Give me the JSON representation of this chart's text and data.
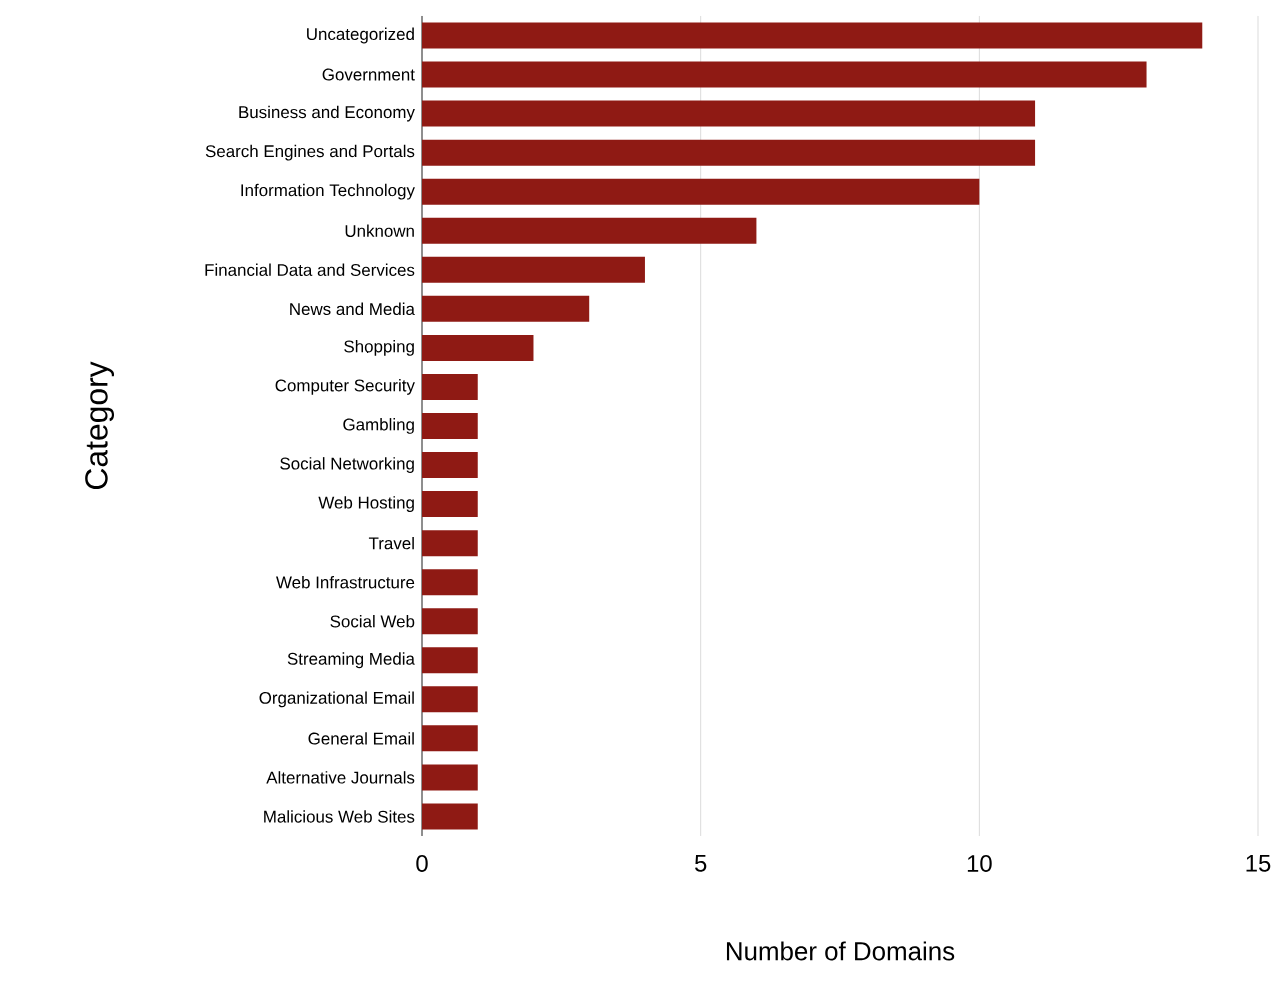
{
  "chart_data": {
    "type": "bar",
    "orientation": "horizontal",
    "xlabel": "Number of Domains",
    "ylabel": "Category",
    "categories": [
      "Uncategorized",
      "Government",
      "Business and Economy",
      "Search Engines and Portals",
      "Information Technology",
      "Unknown",
      "Financial Data and Services",
      "News and Media",
      "Shopping",
      "Computer Security",
      "Gambling",
      "Social Networking",
      "Web Hosting",
      "Travel",
      "Web Infrastructure",
      "Social Web",
      "Streaming Media",
      "Organizational Email",
      "General Email",
      "Alternative Journals",
      "Malicious Web Sites"
    ],
    "values": [
      14,
      13,
      11,
      11,
      10,
      6,
      4,
      3,
      2,
      1,
      1,
      1,
      1,
      1,
      1,
      1,
      1,
      1,
      1,
      1,
      1
    ],
    "color": "#8f1a14",
    "xlim": [
      0,
      15
    ],
    "xticks": [
      0,
      5,
      10,
      15
    ],
    "grid": "x"
  }
}
